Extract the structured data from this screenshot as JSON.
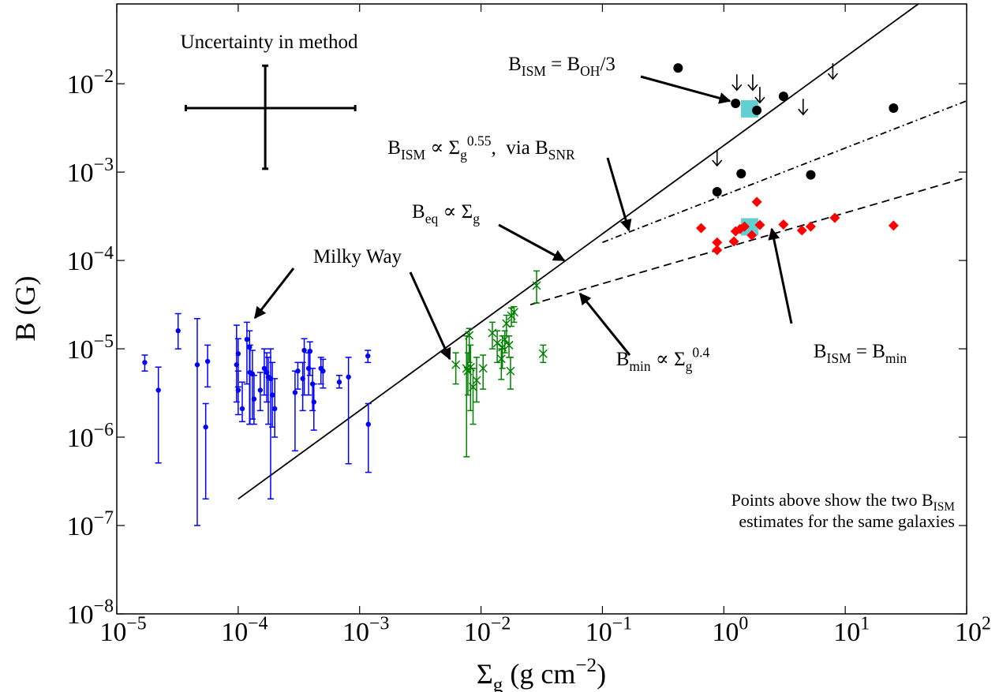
{
  "chart_data": {
    "type": "scatter",
    "xlabel": [
      "Σ",
      {
        "sub": "g"
      },
      " (g cm",
      {
        "sup": "−2"
      },
      ")"
    ],
    "ylabel": [
      "B (G)"
    ],
    "xscale": "log",
    "yscale": "log",
    "xlim": [
      1e-05,
      100
    ],
    "ylim": [
      1e-08,
      0.08
    ],
    "xticks": [
      {
        "value": 1e-05,
        "label": [
          "10",
          {
            "sup": "−5"
          }
        ]
      },
      {
        "value": 0.0001,
        "label": [
          "10",
          {
            "sup": "−4"
          }
        ]
      },
      {
        "value": 0.001,
        "label": [
          "10",
          {
            "sup": "−3"
          }
        ]
      },
      {
        "value": 0.01,
        "label": [
          "10",
          {
            "sup": "−2"
          }
        ]
      },
      {
        "value": 0.1,
        "label": [
          "10",
          {
            "sup": "−1"
          }
        ]
      },
      {
        "value": 1,
        "label": [
          "10",
          {
            "sup": "0"
          }
        ]
      },
      {
        "value": 10,
        "label": [
          "10",
          {
            "sup": "1"
          }
        ]
      },
      {
        "value": 100,
        "label": [
          "10",
          {
            "sup": "2"
          }
        ]
      }
    ],
    "yticks": [
      {
        "value": 1e-08,
        "label": [
          "10",
          {
            "sup": "−8"
          }
        ]
      },
      {
        "value": 1e-07,
        "label": [
          "10",
          {
            "sup": "−7"
          }
        ]
      },
      {
        "value": 1e-06,
        "label": [
          "10",
          {
            "sup": "−6"
          }
        ]
      },
      {
        "value": 1e-05,
        "label": [
          "10",
          {
            "sup": "−5"
          }
        ]
      },
      {
        "value": 0.0001,
        "label": [
          "10",
          {
            "sup": "−4"
          }
        ]
      },
      {
        "value": 0.001,
        "label": [
          "10",
          {
            "sup": "−3"
          }
        ]
      },
      {
        "value": 0.01,
        "label": [
          "10",
          {
            "sup": "−2"
          }
        ]
      }
    ],
    "series": [
      {
        "marker": "none",
        "line": "solid",
        "color": "#000000",
        "x": [
          0.0001,
          40
        ],
        "values": [
          2e-07,
          0.08
        ]
      },
      {
        "marker": "none",
        "line": "dashdot",
        "color": "#000000",
        "x": [
          0.1,
          100
        ],
        "values": [
          0.00016,
          0.0064
        ]
      },
      {
        "marker": "none",
        "line": "dashed",
        "color": "#000000",
        "x": [
          0.0255,
          100
        ],
        "values": [
          3.16e-05,
          0.00087
        ]
      },
      {
        "marker": "square",
        "color": "#62d0d0",
        "x": [
          1.63,
          1.63
        ],
        "values": [
          0.0052,
          0.00024
        ]
      },
      {
        "marker": "circle",
        "color": "#0000ff",
        "x": [
          1.7e-05,
          2.2e-05,
          3.2e-05,
          4.6e-05,
          5.4e-05,
          5.6e-05,
          9.7e-05,
          0.0001,
          0.0001,
          0.000108,
          0.000118,
          0.000124,
          0.000125,
          0.000131,
          0.000135,
          0.000152,
          0.000164,
          0.000172,
          0.000177,
          0.000185,
          0.000191,
          0.0002,
          0.000294,
          0.00031,
          0.00034,
          0.00035,
          0.00038,
          0.00039,
          0.00041,
          0.00042,
          0.00048,
          0.0005,
          0.00068,
          0.00081,
          0.00117,
          0.00118
        ],
        "values": [
          7e-06,
          3.4e-06,
          1.6e-05,
          6.6e-06,
          1.3e-06,
          7.2e-06,
          6.6e-06,
          8.8e-06,
          3.4e-06,
          2.1e-06,
          1.28e-05,
          1.04e-05,
          5.4e-06,
          5.2e-06,
          2.7e-06,
          3.4e-06,
          6e-06,
          5.4e-06,
          4.8e-06,
          4.6e-06,
          3e-06,
          2.1e-06,
          3.2e-06,
          5.6e-06,
          4.6e-06,
          9.6e-06,
          6e-06,
          9.4e-06,
          4e-06,
          2.5e-06,
          6e-06,
          5.6e-06,
          4.2e-06,
          4.8e-06,
          8.3e-06,
          1.4e-06
        ],
        "lower": [
          5.6e-06,
          5.1e-07,
          1e-05,
          1e-07,
          2e-07,
          3.7e-06,
          2.5e-06,
          3.7e-06,
          1.8e-06,
          1.5e-06,
          4e-06,
          1.4e-06,
          1.4e-06,
          1.6e-06,
          1.4e-06,
          2e-06,
          3e-06,
          2.5e-06,
          1.4e-06,
          2e-07,
          1.3e-06,
          1e-06,
          7e-07,
          3.5e-06,
          2e-06,
          3e-06,
          3e-06,
          5e-06,
          2e-06,
          1.2e-06,
          4e-06,
          3.6e-06,
          3.6e-06,
          5e-07,
          7e-06,
          4e-07
        ],
        "upper": [
          8.5e-06,
          6.2e-06,
          2.5e-05,
          2.2e-05,
          2.4e-06,
          1.1e-05,
          1.85e-05,
          1.3e-05,
          5.6e-06,
          4.2e-06,
          2e-05,
          1.6e-05,
          1.1e-05,
          9.6e-06,
          5e-06,
          5.4e-06,
          1e-05,
          9e-06,
          8e-06,
          1e-05,
          7e-06,
          4.6e-06,
          5.6e-06,
          7e-06,
          7e-06,
          1.3e-05,
          9e-06,
          1.2e-05,
          6e-06,
          4e-06,
          8e-06,
          7.6e-06,
          5e-06,
          8e-06,
          9.6e-06,
          2.4e-06
        ]
      },
      {
        "marker": "x",
        "color": "#008000",
        "x": [
          0.0062,
          0.0076,
          0.0078,
          0.008,
          0.0082,
          0.0086,
          0.0092,
          0.0104,
          0.0124,
          0.0136,
          0.0147,
          0.015,
          0.0157,
          0.0162,
          0.017,
          0.0175,
          0.0178,
          0.0187,
          0.0287,
          0.0325
        ],
        "values": [
          6.6e-06,
          6e-06,
          5.6e-06,
          1.42e-05,
          6.2e-06,
          3.7e-06,
          4.4e-06,
          6e-06,
          1.51e-05,
          1.16e-05,
          7.7e-06,
          1.04e-05,
          1.28e-05,
          1.93e-05,
          1.1e-05,
          5.6e-06,
          2.37e-05,
          2.6e-05,
          5.2e-05,
          8.8e-06
        ],
        "lower": [
          4e-06,
          6e-07,
          3e-06,
          7e-06,
          2e-06,
          1.4e-06,
          2.5e-06,
          3.5e-06,
          1e-05,
          7e-06,
          4.5e-06,
          6e-06,
          9e-06,
          1.4e-05,
          8e-06,
          3.5e-06,
          1.8e-05,
          2e-05,
          3.3e-05,
          7e-06
        ],
        "upper": [
          9e-06,
          1.4e-05,
          9e-06,
          1.7e-05,
          1.1e-05,
          6e-06,
          8e-06,
          8.5e-06,
          2e-05,
          1.6e-05,
          1e-05,
          1.4e-05,
          1.6e-05,
          2.4e-05,
          1.4e-05,
          8e-06,
          2.9e-05,
          3e-05,
          7.6e-05,
          1.1e-05
        ]
      },
      {
        "marker": "circle-large",
        "color": "#000000",
        "x": [
          0.42,
          1.25,
          1.87,
          3.1,
          25,
          0.88,
          1.39,
          5.2
        ],
        "values": [
          0.0151,
          0.006,
          0.005,
          0.0072,
          0.0053,
          0.0006,
          0.00096,
          0.00093
        ]
      },
      {
        "marker": "downarrow",
        "color": "#000000",
        "x": [
          1.28,
          1.73,
          1.98,
          7.9,
          4.5,
          0.88
        ],
        "values": [
          0.0104,
          0.0104,
          0.0075,
          0.0139,
          0.0055,
          0.00145
        ]
      },
      {
        "marker": "diamond",
        "color": "#ff0000",
        "x": [
          0.65,
          0.88,
          0.88,
          1.21,
          1.25,
          1.36,
          1.48,
          1.7,
          1.87,
          1.98,
          3.1,
          4.4,
          5.2,
          8.2,
          25
        ],
        "values": [
          0.000232,
          0.00016,
          0.000131,
          0.000164,
          0.000214,
          0.000227,
          0.000242,
          0.000193,
          0.00046,
          0.000252,
          0.000255,
          0.000219,
          0.000242,
          0.000303,
          0.000248
        ]
      }
    ],
    "uncertainty": {
      "x": 0.000167,
      "y": 0.0053,
      "xlower": 3.7e-05,
      "xupper": 0.00092,
      "ylower": 0.00109,
      "yupper": 0.016
    },
    "annotations": [
      {
        "text": [
          "Uncertainty in method"
        ]
      },
      {
        "text": [
          "B",
          {
            "sub": "ISM"
          },
          " = B",
          {
            "sub": "OH"
          },
          "/3"
        ]
      },
      {
        "text": [
          "B",
          {
            "sub": "ISM"
          },
          " ∝ Σ",
          {
            "sub": "g"
          },
          {
            "sup": "0.55"
          },
          ",  via B",
          {
            "sub": "SNR"
          }
        ]
      },
      {
        "text": [
          "B",
          {
            "sub": "eq"
          },
          " ∝ Σ",
          {
            "sub": "g"
          }
        ]
      },
      {
        "text": [
          "Milky Way"
        ]
      },
      {
        "text": [
          "B",
          {
            "sub": "min"
          },
          " ∝ Σ",
          {
            "sub": "g"
          },
          {
            "sup": "0.4"
          }
        ]
      },
      {
        "text": [
          "B",
          {
            "sub": "ISM"
          },
          " = B",
          {
            "sub": "min"
          }
        ]
      },
      {
        "text": [
          "Points above show the two B",
          {
            "sub": "ISM"
          }
        ]
      },
      {
        "text": [
          "estimates for the same galaxies"
        ]
      }
    ]
  }
}
